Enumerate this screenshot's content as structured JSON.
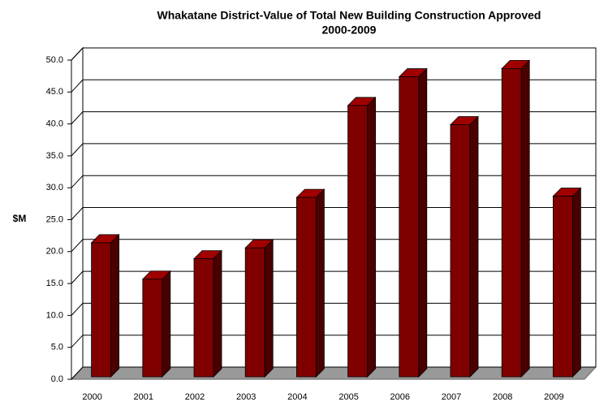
{
  "chart_data": {
    "type": "bar3d",
    "title": [
      "Whakatane District-Value of Total New Building Construction Approved",
      "2000-2009"
    ],
    "y_label": "$M",
    "categories": [
      "2000",
      "2001",
      "2002",
      "2003",
      "2004",
      "2005",
      "2006",
      "2007",
      "2008",
      "2009"
    ],
    "values": [
      21.0,
      15.3,
      18.5,
      20.2,
      28.1,
      42.5,
      47.0,
      39.5,
      48.3,
      28.3
    ],
    "color": "#800000",
    "ylim": [
      0,
      50
    ],
    "yticks": [
      {
        "value": 0,
        "label": "0.0"
      },
      {
        "value": 5,
        "label": "5.0"
      },
      {
        "value": 10,
        "label": "10.0"
      },
      {
        "value": 15,
        "label": "15.0"
      },
      {
        "value": 20,
        "label": "20.0"
      },
      {
        "value": 25,
        "label": "25.0"
      },
      {
        "value": 30,
        "label": "30.0"
      },
      {
        "value": 35,
        "label": "35.0"
      },
      {
        "value": 40,
        "label": "40.0"
      },
      {
        "value": 45,
        "label": "45.0"
      },
      {
        "value": 50,
        "label": "50.0"
      }
    ],
    "grid": true
  }
}
